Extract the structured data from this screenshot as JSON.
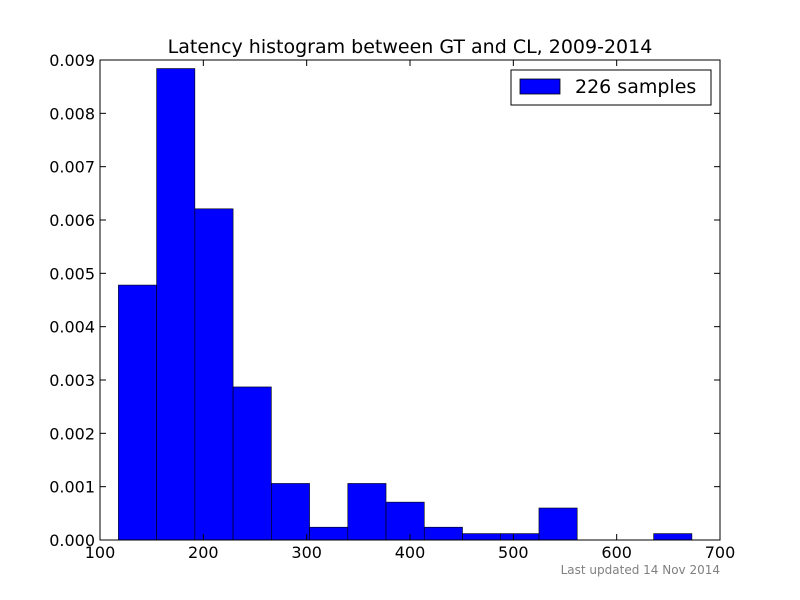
{
  "chart_data": {
    "type": "bar",
    "title": "Latency histogram between GT and CL, 2009-2014",
    "xlabel": "",
    "ylabel": "",
    "xlim": [
      100,
      700
    ],
    "ylim": [
      0,
      0.009
    ],
    "xticks": [
      100,
      200,
      300,
      400,
      500,
      600,
      700
    ],
    "yticks": [
      0.0,
      0.001,
      0.002,
      0.003,
      0.004,
      0.005,
      0.006,
      0.007,
      0.008,
      0.009
    ],
    "xtick_labels": [
      "100",
      "200",
      "300",
      "400",
      "500",
      "600",
      "700"
    ],
    "ytick_labels": [
      "0.000",
      "0.001",
      "0.002",
      "0.003",
      "0.004",
      "0.005",
      "0.006",
      "0.007",
      "0.008",
      "0.009"
    ],
    "bin_edges": [
      117.8,
      154.8,
      191.8,
      228.8,
      265.8,
      302.8,
      339.8,
      376.8,
      413.8,
      450.8,
      487.8,
      524.8,
      561.8,
      598.8,
      635.8,
      672.8
    ],
    "values": [
      0.00478,
      0.00884,
      0.00621,
      0.00287,
      0.00106,
      0.00024,
      0.00106,
      0.00071,
      0.00024,
      0.00012,
      0.00012,
      0.0006,
      0,
      0,
      0.00012
    ],
    "series": [
      {
        "name": "226 samples",
        "color": "#0000ff"
      }
    ],
    "legend_position": "top-right",
    "grid": false
  },
  "footnote": "Last updated 14 Nov 2014"
}
